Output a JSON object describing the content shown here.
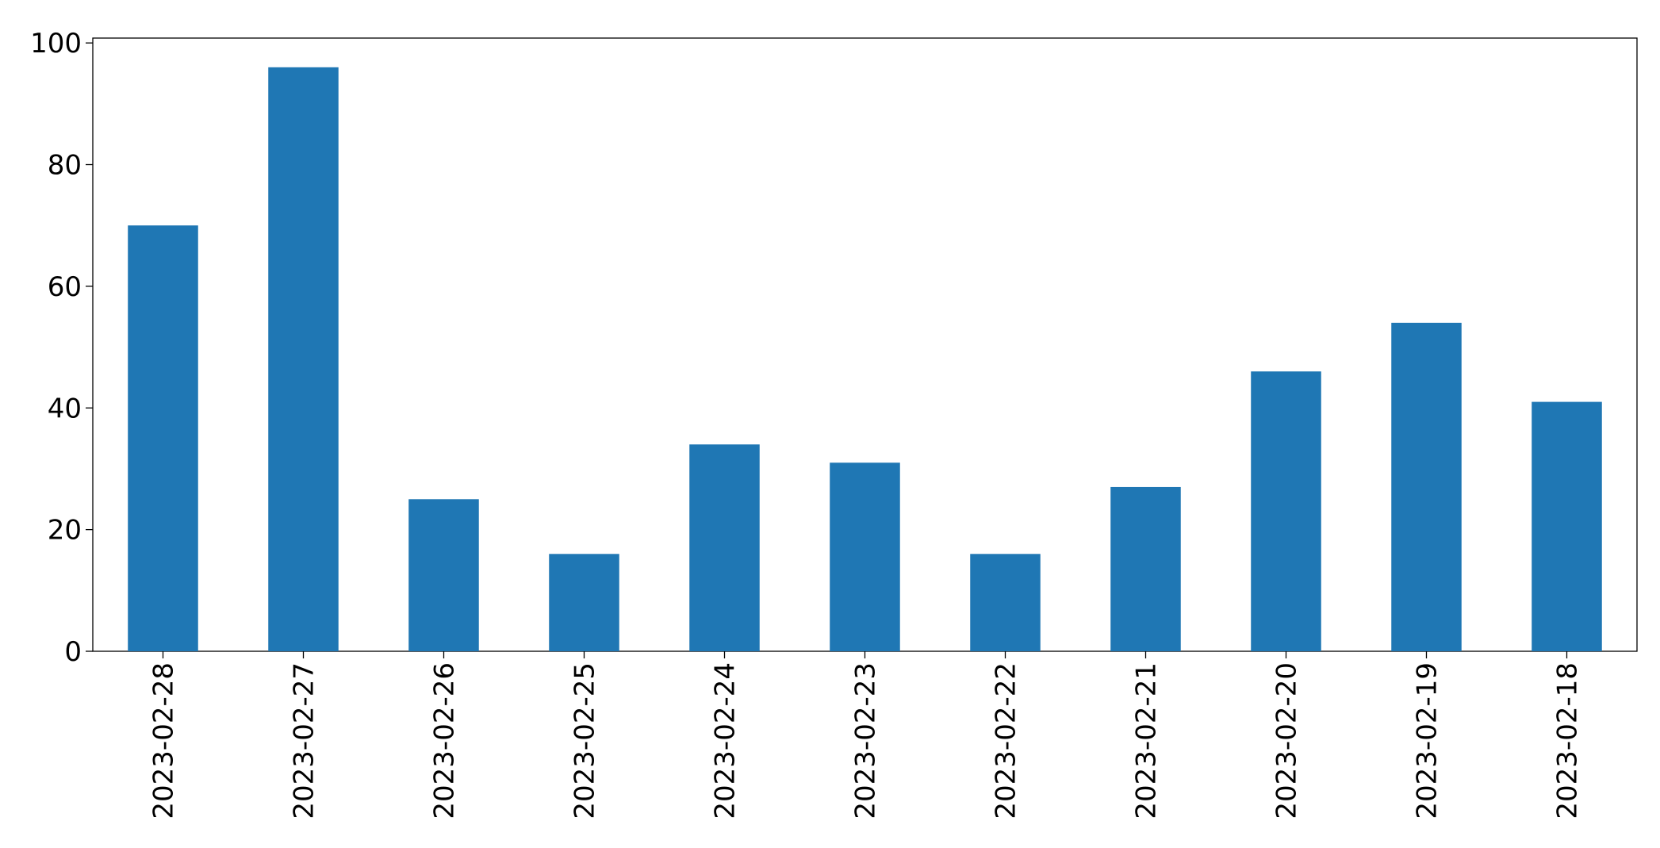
{
  "chart_data": {
    "type": "bar",
    "categories": [
      "2023-02-28",
      "2023-02-27",
      "2023-02-26",
      "2023-02-25",
      "2023-02-24",
      "2023-02-23",
      "2023-02-22",
      "2023-02-21",
      "2023-02-20",
      "2023-02-19",
      "2023-02-18"
    ],
    "values": [
      70,
      96,
      25,
      16,
      34,
      31,
      16,
      27,
      46,
      54,
      41
    ],
    "color": "#1f77b4",
    "ylim": [
      0,
      100.8
    ],
    "yticks": [
      0,
      20,
      40,
      60,
      80,
      100
    ],
    "grid": false
  }
}
